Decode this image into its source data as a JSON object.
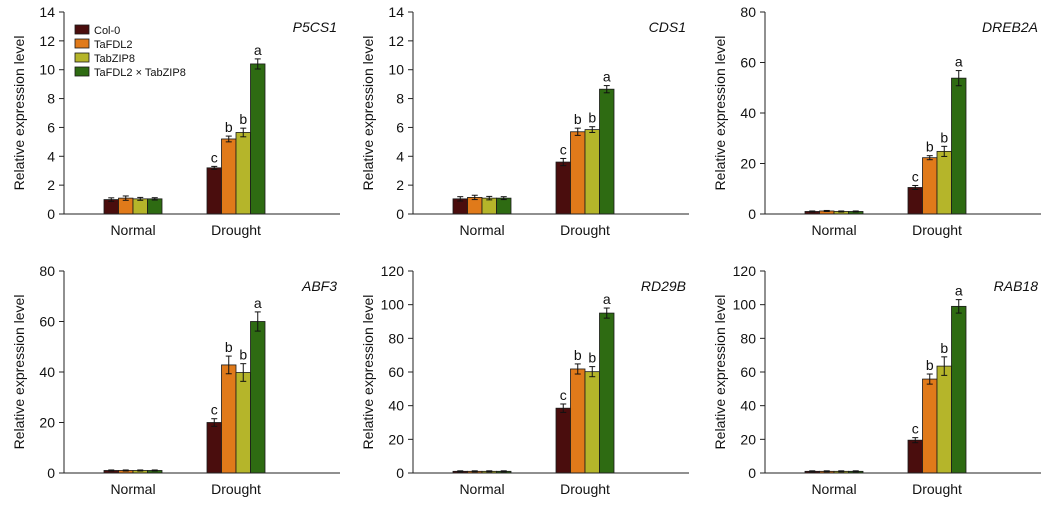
{
  "legend": {
    "entries": [
      {
        "label": "Col-0",
        "color": "#4a0d0d"
      },
      {
        "label": "TaFDL2",
        "color": "#e07a1a"
      },
      {
        "label": "TabZIP8",
        "color": "#b5b52a"
      },
      {
        "label": "TaFDL2 × TabZIP8",
        "color": "#2e6b12"
      }
    ]
  },
  "chart_data": [
    {
      "type": "bar",
      "title": "P5CS1",
      "ylabel": "Relative expression level",
      "categories": [
        "Normal",
        "Drought"
      ],
      "ylim": [
        0,
        14
      ],
      "yticks": [
        0,
        2,
        4,
        6,
        8,
        10,
        12,
        14
      ],
      "series": [
        {
          "name": "Col-0",
          "values": [
            1.0,
            3.2
          ],
          "errors": [
            0.12,
            0.1
          ],
          "letters": [
            "",
            "c"
          ]
        },
        {
          "name": "TaFDL2",
          "values": [
            1.1,
            5.2
          ],
          "errors": [
            0.15,
            0.2
          ],
          "letters": [
            "",
            "b"
          ]
        },
        {
          "name": "TabZIP8",
          "values": [
            1.05,
            5.65
          ],
          "errors": [
            0.1,
            0.3
          ],
          "letters": [
            "",
            "b"
          ]
        },
        {
          "name": "TaFDL2 × TabZIP8",
          "values": [
            1.05,
            10.4
          ],
          "errors": [
            0.08,
            0.35
          ],
          "letters": [
            "",
            "a"
          ]
        }
      ]
    },
    {
      "type": "bar",
      "title": "CDS1",
      "ylabel": "Relative expression level",
      "categories": [
        "Normal",
        "Drought"
      ],
      "ylim": [
        0,
        14
      ],
      "yticks": [
        0,
        2,
        4,
        6,
        8,
        10,
        12,
        14
      ],
      "series": [
        {
          "name": "Col-0",
          "values": [
            1.05,
            3.6
          ],
          "errors": [
            0.15,
            0.25
          ],
          "letters": [
            "",
            "c"
          ]
        },
        {
          "name": "TaFDL2",
          "values": [
            1.15,
            5.7
          ],
          "errors": [
            0.15,
            0.25
          ],
          "letters": [
            "",
            "b"
          ]
        },
        {
          "name": "TabZIP8",
          "values": [
            1.1,
            5.85
          ],
          "errors": [
            0.12,
            0.2
          ],
          "letters": [
            "",
            "b"
          ]
        },
        {
          "name": "TaFDL2 × TabZIP8",
          "values": [
            1.1,
            8.65
          ],
          "errors": [
            0.1,
            0.25
          ],
          "letters": [
            "",
            "a"
          ]
        }
      ]
    },
    {
      "type": "bar",
      "title": "DREB2A",
      "ylabel": "Relative expression level",
      "categories": [
        "Normal",
        "Drought"
      ],
      "ylim": [
        0,
        80
      ],
      "yticks": [
        0,
        20,
        40,
        60,
        80
      ],
      "series": [
        {
          "name": "Col-0",
          "values": [
            1.0,
            10.5
          ],
          "errors": [
            0.2,
            0.8
          ],
          "letters": [
            "",
            "c"
          ]
        },
        {
          "name": "TaFDL2",
          "values": [
            1.2,
            22.3
          ],
          "errors": [
            0.2,
            0.8
          ],
          "letters": [
            "",
            "b"
          ]
        },
        {
          "name": "TabZIP8",
          "values": [
            1.0,
            24.8
          ],
          "errors": [
            0.2,
            2.0
          ],
          "letters": [
            "",
            "b"
          ]
        },
        {
          "name": "TaFDL2 × TabZIP8",
          "values": [
            1.0,
            53.8
          ],
          "errors": [
            0.2,
            3.0
          ],
          "letters": [
            "",
            "a"
          ]
        }
      ]
    },
    {
      "type": "bar",
      "title": "ABF3",
      "ylabel": "Relative expression level",
      "categories": [
        "Normal",
        "Drought"
      ],
      "ylim": [
        0,
        80
      ],
      "yticks": [
        0,
        20,
        40,
        60,
        80
      ],
      "series": [
        {
          "name": "Col-0",
          "values": [
            1.0,
            20.0
          ],
          "errors": [
            0.2,
            1.5
          ],
          "letters": [
            "",
            "c"
          ]
        },
        {
          "name": "TaFDL2",
          "values": [
            1.0,
            42.8
          ],
          "errors": [
            0.2,
            3.5
          ],
          "letters": [
            "",
            "b"
          ]
        },
        {
          "name": "TabZIP8",
          "values": [
            1.0,
            39.8
          ],
          "errors": [
            0.2,
            3.5
          ],
          "letters": [
            "",
            "b"
          ]
        },
        {
          "name": "TaFDL2 × TabZIP8",
          "values": [
            1.0,
            60.0
          ],
          "errors": [
            0.2,
            3.8
          ],
          "letters": [
            "",
            "a"
          ]
        }
      ]
    },
    {
      "type": "bar",
      "title": "RD29B",
      "ylabel": "Relative expression level",
      "categories": [
        "Normal",
        "Drought"
      ],
      "ylim": [
        0,
        120
      ],
      "yticks": [
        0,
        20,
        40,
        60,
        80,
        100,
        120
      ],
      "series": [
        {
          "name": "Col-0",
          "values": [
            1.0,
            38.5
          ],
          "errors": [
            0.3,
            2.5
          ],
          "letters": [
            "",
            "c"
          ]
        },
        {
          "name": "TaFDL2",
          "values": [
            1.0,
            61.8
          ],
          "errors": [
            0.3,
            3.0
          ],
          "letters": [
            "",
            "b"
          ]
        },
        {
          "name": "TabZIP8",
          "values": [
            1.0,
            60.2
          ],
          "errors": [
            0.3,
            3.0
          ],
          "letters": [
            "",
            "b"
          ]
        },
        {
          "name": "TaFDL2 × TabZIP8",
          "values": [
            1.0,
            95.0
          ],
          "errors": [
            0.3,
            3.0
          ],
          "letters": [
            "",
            "a"
          ]
        }
      ]
    },
    {
      "type": "bar",
      "title": "RAB18",
      "ylabel": "Relative expression level",
      "categories": [
        "Normal",
        "Drought"
      ],
      "ylim": [
        0,
        120
      ],
      "yticks": [
        0,
        20,
        40,
        60,
        80,
        100,
        120
      ],
      "series": [
        {
          "name": "Col-0",
          "values": [
            1.0,
            19.5
          ],
          "errors": [
            0.3,
            1.5
          ],
          "letters": [
            "",
            "c"
          ]
        },
        {
          "name": "TaFDL2",
          "values": [
            1.0,
            55.8
          ],
          "errors": [
            0.3,
            3.0
          ],
          "letters": [
            "",
            "b"
          ]
        },
        {
          "name": "TabZIP8",
          "values": [
            1.0,
            63.5
          ],
          "errors": [
            0.3,
            5.5
          ],
          "letters": [
            "",
            "b"
          ]
        },
        {
          "name": "TaFDL2 × TabZIP8",
          "values": [
            1.0,
            99.0
          ],
          "errors": [
            0.3,
            4.0
          ],
          "letters": [
            "",
            "a"
          ]
        }
      ]
    }
  ]
}
